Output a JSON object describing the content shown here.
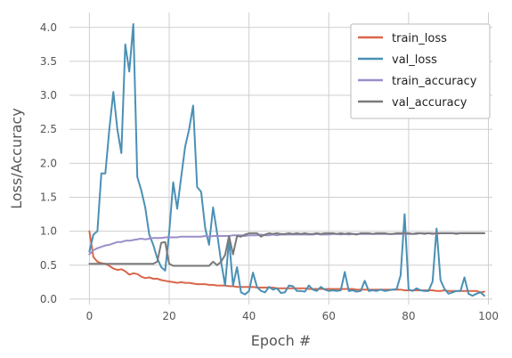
{
  "chart_data": {
    "type": "line",
    "title": "",
    "xlabel": "Epoch #",
    "ylabel": "Loss/Accuracy",
    "xlim": [
      -5,
      101
    ],
    "ylim": [
      -0.08,
      4.22
    ],
    "x_ticks": [
      0,
      20,
      40,
      60,
      80,
      100
    ],
    "y_ticks": [
      0.0,
      0.5,
      1.0,
      1.5,
      2.0,
      2.5,
      3.0,
      3.5,
      4.0
    ],
    "x_tick_labels": [
      "0",
      "20",
      "40",
      "60",
      "80",
      "100"
    ],
    "y_tick_labels": [
      "0.0",
      "0.5",
      "1.0",
      "1.5",
      "2.0",
      "2.5",
      "3.0",
      "3.5",
      "4.0"
    ],
    "grid": true,
    "legend_position": "top-right",
    "x": [
      0,
      1,
      2,
      3,
      4,
      5,
      6,
      7,
      8,
      9,
      10,
      11,
      12,
      13,
      14,
      15,
      16,
      17,
      18,
      19,
      20,
      21,
      22,
      23,
      24,
      25,
      26,
      27,
      28,
      29,
      30,
      31,
      32,
      33,
      34,
      35,
      36,
      37,
      38,
      39,
      40,
      41,
      42,
      43,
      44,
      45,
      46,
      47,
      48,
      49,
      50,
      51,
      52,
      53,
      54,
      55,
      56,
      57,
      58,
      59,
      60,
      61,
      62,
      63,
      64,
      65,
      66,
      67,
      68,
      69,
      70,
      71,
      72,
      73,
      74,
      75,
      76,
      77,
      78,
      79,
      80,
      81,
      82,
      83,
      84,
      85,
      86,
      87,
      88,
      89,
      90,
      91,
      92,
      93,
      94,
      95,
      96,
      97,
      98,
      99
    ],
    "series": [
      {
        "name": "train_loss",
        "color": "#d9664a",
        "values": [
          1.0,
          0.62,
          0.55,
          0.53,
          0.52,
          0.49,
          0.45,
          0.43,
          0.44,
          0.41,
          0.36,
          0.38,
          0.37,
          0.33,
          0.31,
          0.32,
          0.3,
          0.3,
          0.28,
          0.27,
          0.26,
          0.25,
          0.24,
          0.25,
          0.24,
          0.24,
          0.23,
          0.22,
          0.22,
          0.22,
          0.21,
          0.21,
          0.2,
          0.2,
          0.2,
          0.19,
          0.19,
          0.18,
          0.18,
          0.18,
          0.18,
          0.18,
          0.17,
          0.17,
          0.17,
          0.17,
          0.17,
          0.16,
          0.16,
          0.16,
          0.16,
          0.16,
          0.16,
          0.16,
          0.16,
          0.15,
          0.15,
          0.15,
          0.15,
          0.15,
          0.15,
          0.15,
          0.15,
          0.15,
          0.15,
          0.15,
          0.15,
          0.14,
          0.14,
          0.14,
          0.14,
          0.14,
          0.14,
          0.14,
          0.14,
          0.14,
          0.14,
          0.14,
          0.14,
          0.13,
          0.13,
          0.13,
          0.13,
          0.13,
          0.13,
          0.13,
          0.13,
          0.12,
          0.12,
          0.13,
          0.12,
          0.12,
          0.12,
          0.12,
          0.12,
          0.12,
          0.12,
          0.12,
          0.1,
          0.11
        ]
      },
      {
        "name": "val_loss",
        "color": "#4a90b5",
        "values": [
          0.7,
          0.95,
          1.0,
          1.85,
          1.85,
          2.5,
          3.05,
          2.5,
          2.15,
          3.75,
          3.35,
          4.05,
          1.8,
          1.6,
          1.35,
          0.95,
          0.8,
          0.6,
          0.47,
          0.42,
          0.98,
          1.72,
          1.33,
          1.8,
          2.25,
          2.5,
          2.85,
          1.65,
          1.58,
          1.05,
          0.8,
          1.35,
          0.97,
          0.55,
          0.2,
          0.88,
          0.2,
          0.47,
          0.1,
          0.07,
          0.12,
          0.39,
          0.18,
          0.12,
          0.1,
          0.18,
          0.14,
          0.16,
          0.09,
          0.1,
          0.2,
          0.19,
          0.12,
          0.12,
          0.11,
          0.2,
          0.14,
          0.12,
          0.18,
          0.14,
          0.12,
          0.13,
          0.12,
          0.13,
          0.4,
          0.12,
          0.13,
          0.11,
          0.12,
          0.27,
          0.12,
          0.13,
          0.12,
          0.14,
          0.12,
          0.13,
          0.14,
          0.15,
          0.35,
          1.25,
          0.14,
          0.12,
          0.16,
          0.13,
          0.12,
          0.12,
          0.26,
          1.04,
          0.28,
          0.15,
          0.08,
          0.1,
          0.12,
          0.12,
          0.32,
          0.08,
          0.05,
          0.08,
          0.1,
          0.05
        ]
      },
      {
        "name": "train_accuracy",
        "color": "#9b8ec9",
        "values": [
          0.66,
          0.72,
          0.75,
          0.77,
          0.79,
          0.8,
          0.82,
          0.84,
          0.84,
          0.86,
          0.86,
          0.87,
          0.88,
          0.89,
          0.88,
          0.89,
          0.9,
          0.9,
          0.9,
          0.91,
          0.91,
          0.91,
          0.91,
          0.92,
          0.92,
          0.92,
          0.92,
          0.92,
          0.92,
          0.93,
          0.92,
          0.93,
          0.93,
          0.93,
          0.93,
          0.93,
          0.94,
          0.94,
          0.94,
          0.93,
          0.94,
          0.94,
          0.94,
          0.95,
          0.94,
          0.94,
          0.95,
          0.94,
          0.95,
          0.95,
          0.95,
          0.95,
          0.95,
          0.95,
          0.95,
          0.95,
          0.95,
          0.96,
          0.95,
          0.95,
          0.95,
          0.96,
          0.96,
          0.95,
          0.96,
          0.95,
          0.96,
          0.96,
          0.96,
          0.96,
          0.96,
          0.96,
          0.96,
          0.96,
          0.96,
          0.96,
          0.96,
          0.96,
          0.96,
          0.96,
          0.96,
          0.96,
          0.96,
          0.97,
          0.97,
          0.97,
          0.97,
          0.96,
          0.97,
          0.97,
          0.97,
          0.97,
          0.97,
          0.97,
          0.97,
          0.97,
          0.97,
          0.97,
          0.97,
          0.97
        ]
      },
      {
        "name": "val_accuracy",
        "color": "#7a7a7a",
        "values": [
          0.52,
          0.52,
          0.52,
          0.52,
          0.52,
          0.52,
          0.52,
          0.52,
          0.52,
          0.52,
          0.52,
          0.52,
          0.52,
          0.52,
          0.52,
          0.52,
          0.52,
          0.55,
          0.83,
          0.84,
          0.52,
          0.49,
          0.49,
          0.49,
          0.49,
          0.49,
          0.49,
          0.49,
          0.49,
          0.49,
          0.49,
          0.55,
          0.5,
          0.55,
          0.65,
          0.93,
          0.66,
          0.93,
          0.92,
          0.95,
          0.97,
          0.97,
          0.97,
          0.92,
          0.95,
          0.97,
          0.96,
          0.97,
          0.96,
          0.96,
          0.97,
          0.96,
          0.97,
          0.96,
          0.97,
          0.96,
          0.96,
          0.97,
          0.96,
          0.97,
          0.97,
          0.97,
          0.96,
          0.97,
          0.96,
          0.97,
          0.96,
          0.95,
          0.97,
          0.97,
          0.97,
          0.96,
          0.97,
          0.97,
          0.97,
          0.96,
          0.96,
          0.97,
          0.97,
          0.97,
          0.97,
          0.96,
          0.97,
          0.97,
          0.96,
          0.97,
          0.96,
          0.97,
          0.97,
          0.97,
          0.97,
          0.97,
          0.96,
          0.97,
          0.97,
          0.97,
          0.97,
          0.97,
          0.97,
          0.97
        ]
      }
    ]
  }
}
